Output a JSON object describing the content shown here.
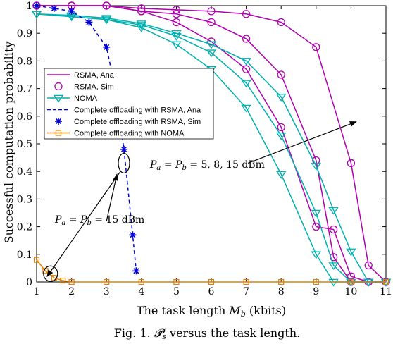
{
  "chart_data": {
    "type": "line",
    "xlabel": "The task length M_b (kbits)",
    "ylabel": "Successful computation probability",
    "xlim": [
      1,
      11
    ],
    "ylim": [
      0,
      1
    ],
    "xticks": [
      "1",
      "2",
      "3",
      "4",
      "5",
      "6",
      "7",
      "8",
      "9",
      "10",
      "11"
    ],
    "yticks": [
      "0",
      "0.1",
      "0.2",
      "0.3",
      "0.4",
      "0.5",
      "0.6",
      "0.7",
      "0.8",
      "0.9",
      "1"
    ],
    "grid": false,
    "legend_position": "upper-left",
    "legend": [
      {
        "label": "RSMA, Ana",
        "color": "#b000b0",
        "style": "solid",
        "marker": "none"
      },
      {
        "label": "RSMA, Sim",
        "color": "#b000b0",
        "style": "none",
        "marker": "circle"
      },
      {
        "label": "NOMA",
        "color": "#00b0b0",
        "style": "solid",
        "marker": "triangle-down"
      },
      {
        "label": "Complete offloading with RSMA, Ana",
        "color": "#0000d0",
        "style": "dashed",
        "marker": "none"
      },
      {
        "label": "Complete offloading with RSMA, Sim",
        "color": "#0000d0",
        "style": "none",
        "marker": "asterisk"
      },
      {
        "label": "Complete offloading with NOMA",
        "color": "#e08000",
        "style": "solid",
        "marker": "square"
      }
    ],
    "series": [
      {
        "group": "rsma",
        "color": "#b000b0",
        "marker": "circle",
        "x": [
          1,
          2,
          3,
          4,
          5,
          6,
          7,
          8,
          9,
          10,
          10.5,
          11
        ],
        "y": [
          1.0,
          1.0,
          1.0,
          0.99,
          0.985,
          0.98,
          0.97,
          0.94,
          0.85,
          0.43,
          0.06,
          0.0
        ]
      },
      {
        "group": "rsma",
        "color": "#b000b0",
        "marker": "circle",
        "x": [
          1,
          2,
          3,
          4,
          5,
          6,
          7,
          8,
          9,
          9.5,
          10,
          10.5,
          11
        ],
        "y": [
          1.0,
          1.0,
          1.0,
          0.98,
          0.94,
          0.87,
          0.77,
          0.56,
          0.2,
          0.19,
          0.02,
          0.0,
          0.0
        ]
      },
      {
        "group": "rsma",
        "color": "#b000b0",
        "marker": "circle",
        "x": [
          1,
          2,
          3,
          4,
          5,
          6,
          7,
          8,
          9,
          9.5,
          10,
          10.5,
          11
        ],
        "y": [
          1.0,
          1.0,
          1.0,
          0.98,
          0.97,
          0.94,
          0.88,
          0.75,
          0.44,
          0.09,
          0.0,
          0.0,
          0.0
        ]
      },
      {
        "group": "noma",
        "color": "#00b0b0",
        "marker": "triangle",
        "x": [
          1,
          2,
          3,
          4,
          5,
          6,
          7,
          8,
          9,
          9.5,
          10,
          10.5,
          11
        ],
        "y": [
          0.97,
          0.96,
          0.95,
          0.93,
          0.89,
          0.83,
          0.72,
          0.53,
          0.25,
          0.06,
          0.0,
          0.0,
          0.0
        ]
      },
      {
        "group": "noma",
        "color": "#00b0b0",
        "marker": "triangle",
        "x": [
          1,
          2,
          3,
          4,
          5,
          6,
          7,
          8,
          9,
          9.5,
          10,
          10.5,
          11
        ],
        "y": [
          0.97,
          0.96,
          0.95,
          0.92,
          0.86,
          0.77,
          0.63,
          0.39,
          0.1,
          0.0,
          0.0,
          0.0,
          0.0
        ]
      },
      {
        "group": "noma",
        "color": "#00b0b0",
        "marker": "triangle",
        "x": [
          1,
          2,
          3,
          4,
          5,
          6,
          7,
          8,
          9,
          9.5,
          10,
          10.5,
          11
        ],
        "y": [
          0.97,
          0.965,
          0.955,
          0.935,
          0.9,
          0.86,
          0.8,
          0.67,
          0.42,
          0.26,
          0.11,
          0.0,
          0.0
        ]
      },
      {
        "group": "complete-rsma",
        "color": "#0000d0",
        "marker": "asterisk",
        "x": [
          1.0,
          1.5,
          2.0,
          2.5,
          3.0,
          3.25,
          3.5,
          3.75,
          3.85
        ],
        "y": [
          1.0,
          0.99,
          0.98,
          0.94,
          0.85,
          0.7,
          0.48,
          0.17,
          0.04
        ]
      },
      {
        "group": "complete-noma",
        "color": "#e08000",
        "marker": "square",
        "x": [
          1.0,
          1.25,
          1.5,
          1.75,
          2.0,
          3.0,
          4.0,
          5.0,
          6.0,
          7.0,
          8.0,
          9.0,
          10.0,
          11.0
        ],
        "y": [
          0.08,
          0.04,
          0.015,
          0.005,
          0.0,
          0.0,
          0.0,
          0.0,
          0.0,
          0.0,
          0.0,
          0.0,
          0.0,
          0.0
        ]
      }
    ],
    "annotations": [
      {
        "text": "P_a = P_b = 5, 8, 15 dBm",
        "from": [
          7.05,
          0.43
        ],
        "to": [
          10.15,
          0.58
        ]
      },
      {
        "text": "P_a = P_b = 15 dBm",
        "from": [
          3.4,
          0.4
        ],
        "to": [
          1.3,
          0.02
        ],
        "ellipse_center": [
          1.4,
          0.03
        ]
      }
    ],
    "caption": "Fig. 1. P_s versus the task length."
  }
}
